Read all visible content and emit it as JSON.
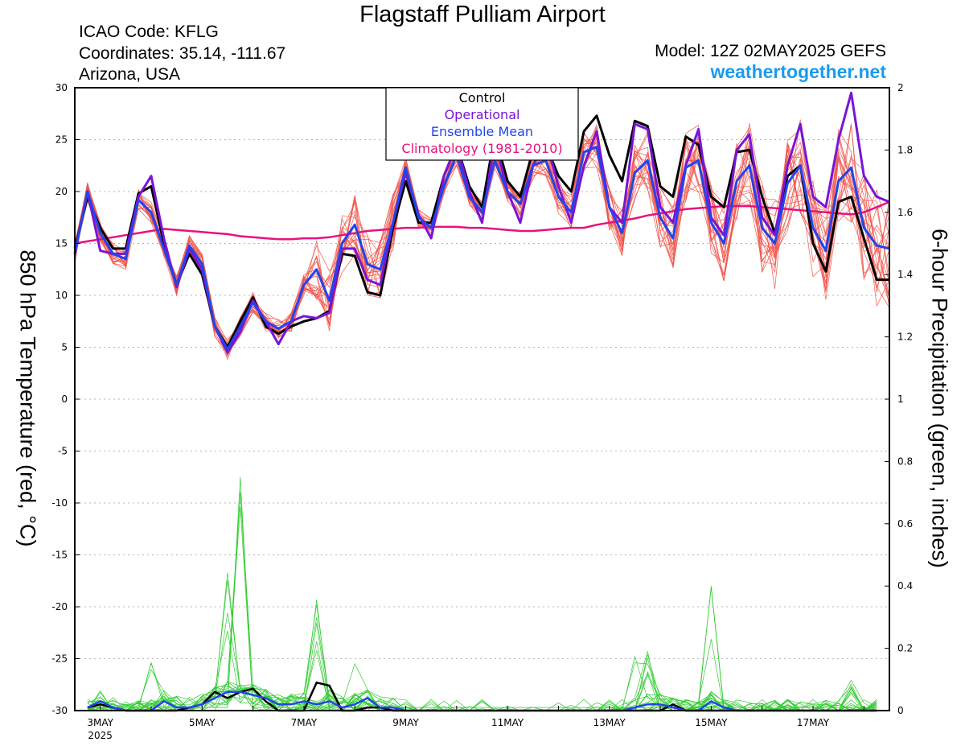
{
  "header": {
    "title": "Flagstaff Pulliam Airport",
    "icao": "ICAO Code: KFLG",
    "coordinates": "Coordinates: 35.14, -111.67",
    "region": "Arizona, USA",
    "model": "Model: 12Z 02MAY2025 GEFS",
    "website": "weathertogether.net"
  },
  "colors": {
    "control": "#000000",
    "operational": "#7a14d6",
    "ensemble_mean": "#2244ee",
    "climatology": "#e8117f",
    "members_temp": "#f0554a",
    "members_precip": "#33cc33",
    "website": "#1a9bf0"
  },
  "chart_data": {
    "type": "line",
    "ylabel_left": "850 hPa Temperature (red, °C)",
    "ylabel_right": "6-hour Precipitation (green, inches)",
    "ylim_left": [
      -30,
      30
    ],
    "ylim_right": [
      0,
      2
    ],
    "yticks_left": [
      "30",
      "25",
      "20",
      "15",
      "10",
      "5",
      "0",
      "-5",
      "-10",
      "-15",
      "-20",
      "-25",
      "-30"
    ],
    "yticks_right": [
      "2",
      "1.8",
      "1.6",
      "1.4",
      "1.2",
      "1",
      "0.8",
      "0.6",
      "0.4",
      "0.2",
      "0"
    ],
    "xticks": [
      {
        "day": 3,
        "label": "3MAY",
        "sublabel": "2025"
      },
      {
        "day": 5,
        "label": "5MAY",
        "sublabel": ""
      },
      {
        "day": 7,
        "label": "7MAY",
        "sublabel": ""
      },
      {
        "day": 9,
        "label": "9MAY",
        "sublabel": ""
      },
      {
        "day": 11,
        "label": "11MAY",
        "sublabel": ""
      },
      {
        "day": 13,
        "label": "13MAY",
        "sublabel": ""
      },
      {
        "day": 15,
        "label": "15MAY",
        "sublabel": ""
      },
      {
        "day": 17,
        "label": "17MAY",
        "sublabel": ""
      }
    ],
    "x_range_days": [
      2.5,
      18.5
    ],
    "grid": "horizontal dotted",
    "legend": {
      "position": "top-center",
      "entries": [
        {
          "name": "Control",
          "color": "#000000"
        },
        {
          "name": "Operational",
          "color": "#7a14d6"
        },
        {
          "name": "Ensemble Mean",
          "color": "#2244ee"
        },
        {
          "name": "Climatology (1981-2010)",
          "color": "#e8117f"
        }
      ]
    },
    "temp_x_days": [
      2.5,
      2.75,
      3,
      3.25,
      3.5,
      3.75,
      4,
      4.25,
      4.5,
      4.75,
      5,
      5.25,
      5.5,
      5.75,
      6,
      6.25,
      6.5,
      6.75,
      7,
      7.25,
      7.5,
      7.75,
      8,
      8.25,
      8.5,
      8.75,
      9,
      9.25,
      9.5,
      9.75,
      10,
      10.25,
      10.5,
      10.75,
      11,
      11.25,
      11.5,
      11.75,
      12,
      12.25,
      12.5,
      12.75,
      13,
      13.25,
      13.5,
      13.75,
      14,
      14.25,
      14.5,
      14.75,
      15,
      15.25,
      15.5,
      15.75,
      16,
      16.25,
      16.5,
      16.75,
      17,
      17.25,
      17.5,
      17.75,
      18,
      18.25,
      18.5
    ],
    "series": [
      {
        "name": "Control",
        "values": [
          14.5,
          19.5,
          16.5,
          14.5,
          14.5,
          19.8,
          20.5,
          15.0,
          11.0,
          14.0,
          12.0,
          7.0,
          5.0,
          7.5,
          9.8,
          7.0,
          6.3,
          7.0,
          7.5,
          7.8,
          8.5,
          14.0,
          13.8,
          10.3,
          10.0,
          16.5,
          21.0,
          17.0,
          17.0,
          21.5,
          24.5,
          20.5,
          18.5,
          25.5,
          21.0,
          19.5,
          24.0,
          24.5,
          21.5,
          20.0,
          25.8,
          27.3,
          23.5,
          21.0,
          26.8,
          26.3,
          20.5,
          19.5,
          25.3,
          24.5,
          19.5,
          18.5,
          23.8,
          24.0,
          19.5,
          16.0,
          21.5,
          22.5,
          15.0,
          12.3,
          19.0,
          19.5,
          15.5,
          11.5,
          11.5
        ]
      },
      {
        "name": "Operational",
        "values": [
          14.0,
          20.0,
          14.3,
          14.0,
          14.0,
          19.5,
          21.5,
          15.5,
          10.8,
          14.5,
          12.5,
          7.0,
          4.5,
          6.5,
          9.5,
          7.5,
          5.3,
          7.5,
          8.0,
          7.8,
          8.3,
          14.5,
          14.5,
          11.5,
          11.0,
          17.0,
          21.8,
          17.8,
          15.5,
          21.5,
          24.5,
          20.0,
          17.0,
          25.0,
          20.0,
          17.0,
          22.5,
          25.0,
          20.5,
          17.0,
          22.5,
          25.8,
          18.5,
          17.0,
          26.5,
          26.0,
          18.5,
          17.0,
          22.5,
          26.0,
          17.5,
          15.8,
          24.0,
          25.5,
          17.5,
          15.8,
          22.5,
          26.5,
          19.5,
          18.5,
          25.0,
          29.5,
          21.5,
          19.5,
          19.0
        ]
      },
      {
        "name": "Ensemble Mean",
        "values": [
          14.0,
          20.0,
          16.0,
          14.0,
          13.5,
          19.2,
          18.0,
          14.5,
          11.0,
          14.8,
          13.0,
          7.0,
          4.8,
          7.0,
          9.3,
          7.5,
          6.8,
          7.5,
          11.0,
          12.5,
          9.5,
          15.0,
          16.8,
          13.0,
          12.5,
          17.0,
          22.3,
          17.5,
          16.5,
          20.5,
          23.5,
          19.5,
          18.0,
          23.0,
          20.0,
          18.8,
          22.5,
          23.0,
          19.5,
          18.0,
          23.8,
          24.3,
          18.5,
          16.0,
          21.8,
          23.0,
          17.5,
          15.5,
          22.3,
          23.0,
          17.0,
          15.0,
          21.0,
          22.5,
          16.5,
          15.0,
          20.8,
          22.5,
          16.5,
          14.3,
          21.0,
          22.3,
          16.5,
          14.8,
          14.5
        ]
      },
      {
        "name": "Climatology (1981-2010)",
        "values": [
          15.0,
          15.2,
          15.4,
          15.6,
          15.8,
          16.0,
          16.2,
          16.4,
          16.3,
          16.2,
          16.1,
          16.0,
          15.9,
          15.7,
          15.6,
          15.5,
          15.4,
          15.4,
          15.5,
          15.5,
          15.6,
          15.8,
          16.0,
          16.2,
          16.3,
          16.4,
          16.5,
          16.5,
          16.6,
          16.6,
          16.6,
          16.5,
          16.5,
          16.4,
          16.3,
          16.2,
          16.2,
          16.3,
          16.4,
          16.5,
          16.5,
          16.8,
          17.0,
          17.2,
          17.4,
          17.7,
          17.9,
          18.1,
          18.3,
          18.4,
          18.5,
          18.6,
          18.6,
          18.6,
          18.5,
          18.4,
          18.3,
          18.2,
          18.1,
          18.0,
          17.9,
          17.8,
          18.0,
          18.5,
          19.0
        ]
      }
    ],
    "precip_x_days": [
      2.75,
      3,
      3.25,
      3.5,
      3.75,
      4,
      4.25,
      4.5,
      4.75,
      5,
      5.25,
      5.5,
      5.75,
      6,
      6.25,
      6.5,
      6.75,
      7,
      7.25,
      7.5,
      7.75,
      8,
      8.25,
      8.5,
      8.75,
      9,
      9.25,
      9.5,
      9.75,
      10,
      10.25,
      10.5,
      10.75,
      11,
      11.25,
      11.5,
      11.75,
      12,
      12.25,
      12.5,
      12.75,
      13,
      13.25,
      13.5,
      13.75,
      14,
      14.25,
      14.5,
      14.75,
      15,
      15.25,
      15.5,
      15.75,
      16,
      16.25,
      16.5,
      16.75,
      17,
      17.25,
      17.5,
      17.75,
      18,
      18.25
    ],
    "precip_series": [
      {
        "name": "Control",
        "values": [
          0.01,
          0.02,
          0.01,
          0.0,
          0.0,
          0.0,
          0.0,
          0.0,
          0.01,
          0.02,
          0.06,
          0.04,
          0.06,
          0.07,
          0.03,
          0.0,
          0.0,
          0.0,
          0.09,
          0.08,
          0.0,
          0.0,
          0.01,
          0.01,
          0.0,
          0.0,
          0.0,
          0.0,
          0.0,
          0.0,
          0.0,
          0.0,
          0.0,
          0.0,
          0.0,
          0.0,
          0.0,
          0.0,
          0.0,
          0.0,
          0.0,
          0.0,
          0.0,
          0.0,
          0.0,
          0.0,
          0.02,
          0.0,
          0.0,
          0.0,
          0.0,
          0.0,
          0.0,
          0.0,
          0.0,
          0.0,
          0.0,
          0.0,
          0.0,
          0.0,
          0.0,
          0.0,
          0.0
        ]
      },
      {
        "name": "Ensemble Mean",
        "values": [
          0.01,
          0.03,
          0.01,
          0.0,
          0.0,
          0.0,
          0.03,
          0.01,
          0.01,
          0.02,
          0.04,
          0.06,
          0.06,
          0.05,
          0.04,
          0.02,
          0.02,
          0.03,
          0.02,
          0.03,
          0.01,
          0.02,
          0.04,
          0.01,
          0.01,
          0.0,
          0.0,
          0.0,
          0.0,
          0.0,
          0.0,
          0.0,
          0.0,
          0.0,
          0.0,
          0.0,
          0.0,
          0.0,
          0.0,
          0.0,
          0.0,
          0.0,
          0.0,
          0.01,
          0.02,
          0.02,
          0.01,
          0.0,
          0.0,
          0.03,
          0.01,
          0.0,
          0.0,
          0.0,
          0.0,
          0.0,
          0.0,
          0.0,
          0.0,
          0.0,
          0.0,
          0.0,
          0.0
        ]
      }
    ],
    "ensemble_members": "temperature members (red) and precipitation members (green)"
  }
}
